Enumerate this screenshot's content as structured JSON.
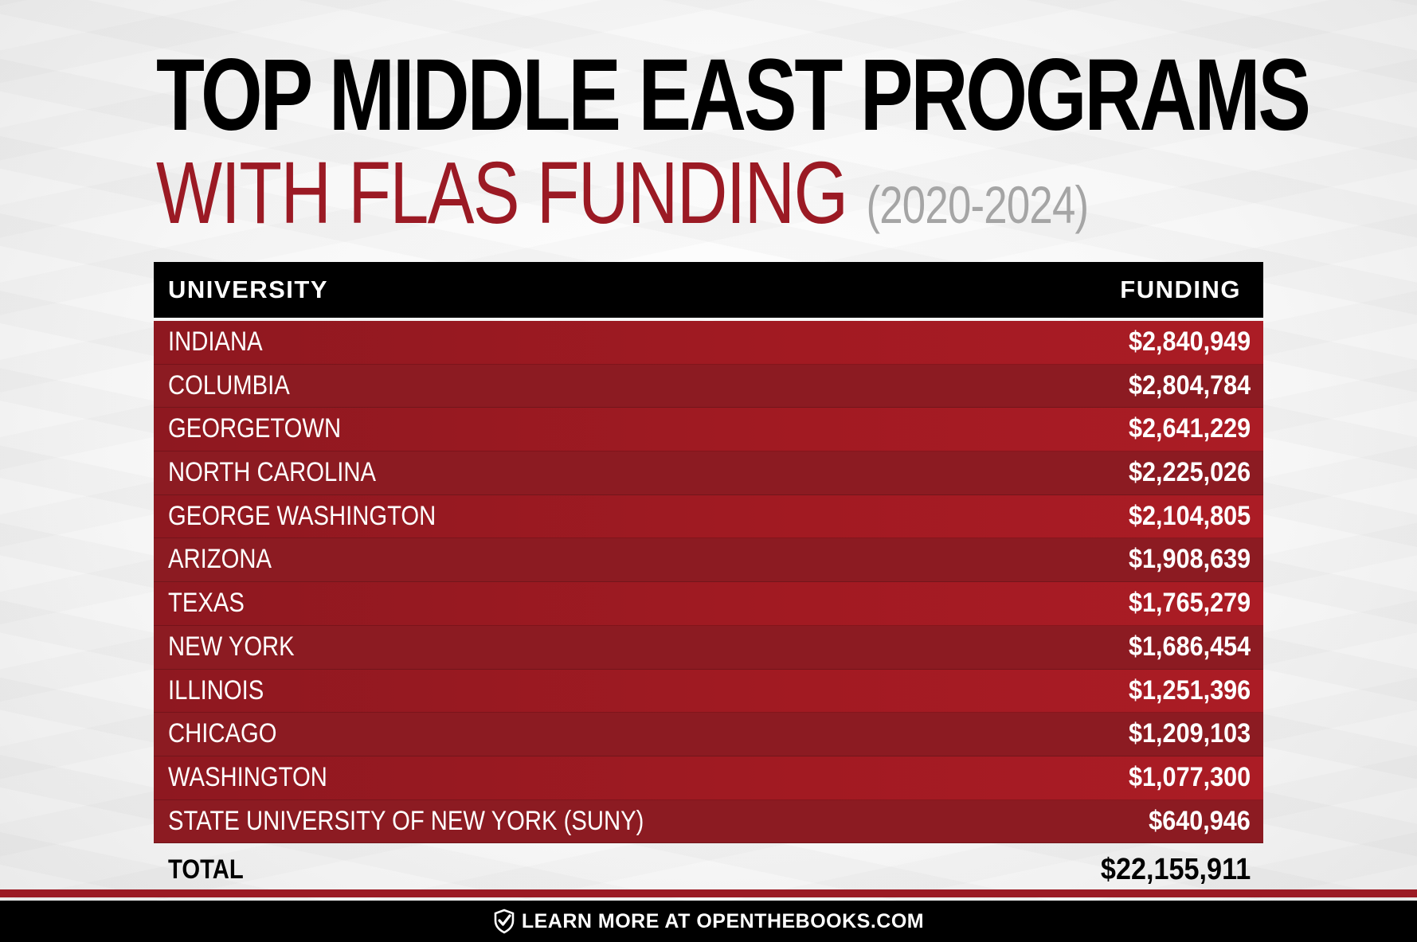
{
  "title": {
    "line1": "TOP MIDDLE EAST PROGRAMS",
    "line2": "WITH FLAS FUNDING",
    "years": "(2020-2024)"
  },
  "colors": {
    "title_red": "#9b1a24",
    "row_red": "#a11a22",
    "row_dark_red": "#8c1b22",
    "header_black": "#000000",
    "years_gray": "#a5a5a5"
  },
  "chart_data": {
    "type": "table",
    "columns": [
      "UNIVERSITY",
      "FUNDING"
    ],
    "rows": [
      {
        "university": "INDIANA",
        "funding": "$2,840,949",
        "value": 2840949
      },
      {
        "university": "COLUMBIA",
        "funding": "$2,804,784",
        "value": 2804784
      },
      {
        "university": "GEORGETOWN",
        "funding": "$2,641,229",
        "value": 2641229
      },
      {
        "university": "NORTH CAROLINA",
        "funding": "$2,225,026",
        "value": 2225026
      },
      {
        "university": "GEORGE WASHINGTON",
        "funding": "$2,104,805",
        "value": 2104805
      },
      {
        "university": "ARIZONA",
        "funding": "$1,908,639",
        "value": 1908639
      },
      {
        "university": "TEXAS",
        "funding": "$1,765,279",
        "value": 1765279
      },
      {
        "university": "NEW YORK",
        "funding": "$1,686,454",
        "value": 1686454
      },
      {
        "university": "ILLINOIS",
        "funding": "$1,251,396",
        "value": 1251396
      },
      {
        "university": "CHICAGO",
        "funding": "$1,209,103",
        "value": 1209103
      },
      {
        "university": "WASHINGTON",
        "funding": "$1,077,300",
        "value": 1077300
      },
      {
        "university": "STATE UNIVERSITY OF NEW YORK (SUNY)",
        "funding": "$640,946",
        "value": 640946
      }
    ],
    "total_label": "TOTAL",
    "total": "$22,155,911"
  },
  "footer": {
    "icon": "check-shield-icon",
    "text": "LEARN MORE AT OPENTHEBOOKS.COM"
  }
}
